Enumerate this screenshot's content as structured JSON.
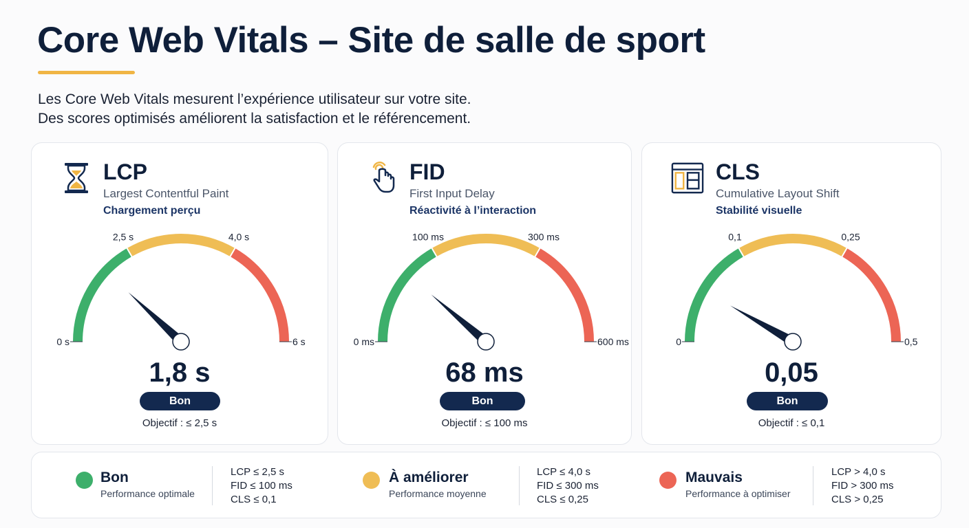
{
  "header": {
    "title": "Core Web Vitals – Site de salle de sport",
    "intro_line1": "Les Core Web Vitals mesurent l’expérience utilisateur sur votre site.",
    "intro_line2": "Des scores optimisés améliorent la satisfaction et le référencement."
  },
  "colors": {
    "good": "#3daf6b",
    "improve": "#efbd55",
    "poor": "#ec6555",
    "navy": "#13294f",
    "accent": "#f0b544"
  },
  "cards": [
    {
      "icon": "hourglass-icon",
      "abbr": "LCP",
      "full": "Largest Contentful Paint",
      "subtitle": "Chargement perçu",
      "value": "1,8 s",
      "status": "Bon",
      "objective": "Objectif : ≤ 2,5 s",
      "scale": {
        "min_label": "0 s",
        "t1_label": "2,5 s",
        "t2_label": "4,0 s",
        "max_label": "6 s",
        "min": 0,
        "t1": 2.5,
        "t2": 4.0,
        "max": 6,
        "reading": 1.8
      }
    },
    {
      "icon": "pointer-hand-icon",
      "abbr": "FID",
      "full": "First Input Delay",
      "subtitle": "Réactivité à l’interaction",
      "value": "68 ms",
      "status": "Bon",
      "objective": "Objectif : ≤ 100 ms",
      "scale": {
        "min_label": "0 ms",
        "t1_label": "100 ms",
        "t2_label": "300 ms",
        "max_label": "600 ms",
        "min": 0,
        "t1": 100,
        "t2": 300,
        "max": 600,
        "reading": 68
      }
    },
    {
      "icon": "layout-icon",
      "abbr": "CLS",
      "full": "Cumulative Layout Shift",
      "subtitle": "Stabilité visuelle",
      "value": "0,05",
      "status": "Bon",
      "objective": "Objectif : ≤ 0,1",
      "scale": {
        "min_label": "0",
        "t1_label": "0,1",
        "t2_label": "0,25",
        "max_label": "0,5",
        "min": 0,
        "t1": 0.1,
        "t2": 0.25,
        "max": 0.5,
        "reading": 0.05
      }
    }
  ],
  "legend": [
    {
      "title": "Bon",
      "desc": "Performance optimale",
      "lines": [
        "LCP ≤ 2,5 s",
        "FID ≤ 100 ms",
        "CLS ≤ 0,1"
      ]
    },
    {
      "title": "À améliorer",
      "desc": "Performance moyenne",
      "lines": [
        "LCP ≤ 4,0 s",
        "FID ≤ 300 ms",
        "CLS ≤ 0,25"
      ]
    },
    {
      "title": "Mauvais",
      "desc": "Performance à optimiser",
      "lines": [
        "LCP > 4,0 s",
        "FID > 300 ms",
        "CLS > 0,25"
      ]
    }
  ]
}
